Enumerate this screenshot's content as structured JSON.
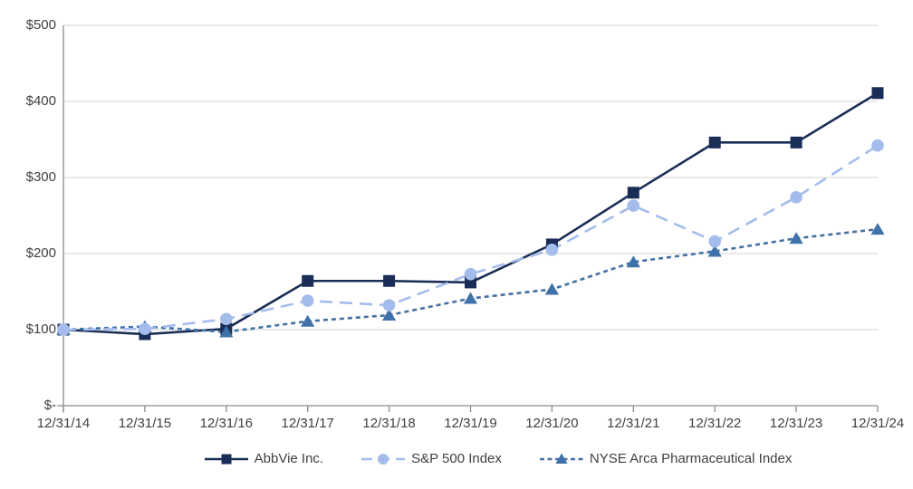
{
  "chart_data": {
    "type": "line",
    "title": "",
    "categories": [
      "12/31/14",
      "12/31/15",
      "12/31/16",
      "12/31/17",
      "12/31/18",
      "12/31/19",
      "12/31/20",
      "12/31/21",
      "12/31/22",
      "12/31/23",
      "12/31/24"
    ],
    "series": [
      {
        "name": "AbbVie Inc.",
        "marker": "square",
        "dash": "solid",
        "color": "#1A2D56",
        "values": [
          100,
          94,
          101,
          164,
          164,
          162,
          212,
          280,
          346,
          346,
          411
        ]
      },
      {
        "name": "S&P 500 Index",
        "marker": "circle",
        "dash": "long-dash",
        "color": "#A4BCEC",
        "values": [
          100,
          101,
          114,
          138,
          132,
          173,
          205,
          263,
          216,
          274,
          342
        ]
      },
      {
        "name": "NYSE Arca Pharmaceutical Index",
        "marker": "triangle",
        "dash": "short-dash",
        "color": "#3F72A8",
        "values": [
          100,
          104,
          97,
          111,
          119,
          141,
          153,
          189,
          203,
          220,
          232
        ]
      }
    ],
    "y_axis": {
      "min": 0,
      "max": 500,
      "ticks": [
        {
          "label": "$-",
          "value": 0
        },
        {
          "label": "$100",
          "value": 100
        },
        {
          "label": "$200",
          "value": 200
        },
        {
          "label": "$300",
          "value": 300
        },
        {
          "label": "$400",
          "value": 400
        },
        {
          "label": "$500",
          "value": 500
        }
      ]
    },
    "grid": true,
    "legend_position": "bottom",
    "styles": {
      "grid_color": "#D9D9D9",
      "axis_color": "#8C8C8C",
      "label_color": "#404040",
      "background": "#FFFFFF"
    }
  }
}
